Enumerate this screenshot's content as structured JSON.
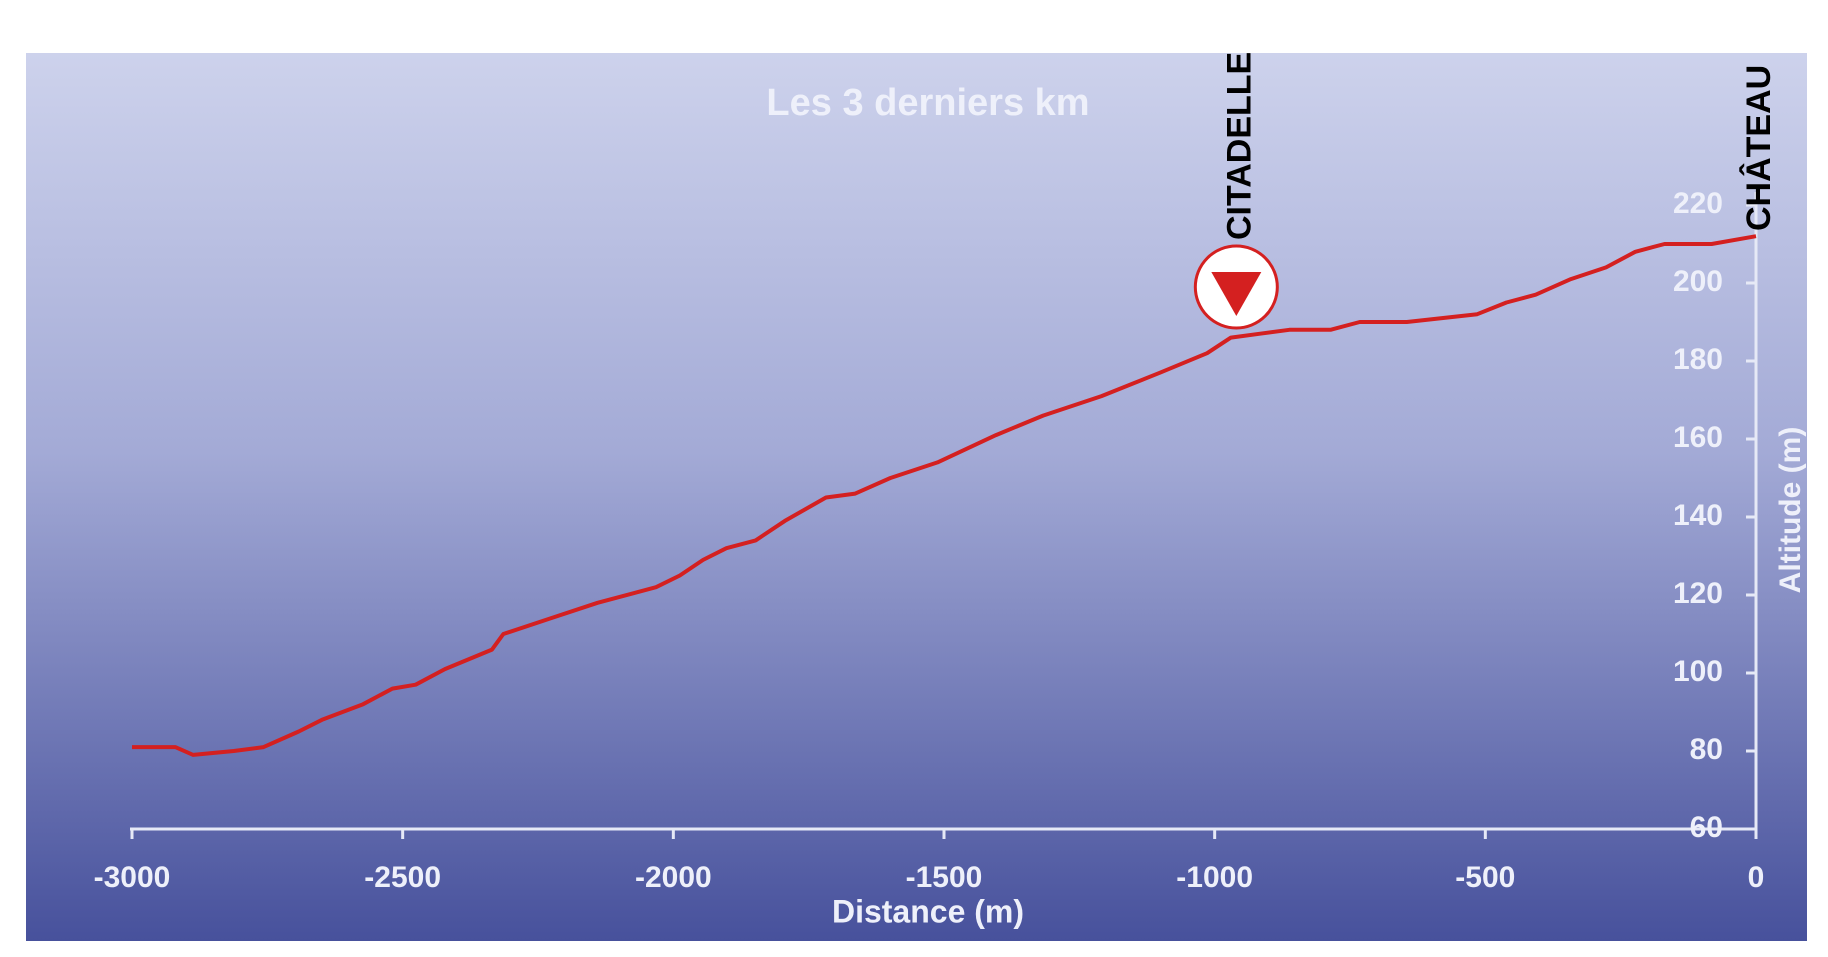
{
  "chart_data": {
    "type": "line",
    "title": "Les 3 derniers km",
    "x_label": "Distance (m)",
    "y_label": "Altitude (m)",
    "x": [
      -3000,
      -2920,
      -2887,
      -2812,
      -2757,
      -2692,
      -2649,
      -2573,
      -2519,
      -2476,
      -2422,
      -2335,
      -2314,
      -2227,
      -2140,
      -2032,
      -1988,
      -1945,
      -1902,
      -1848,
      -1794,
      -1718,
      -1664,
      -1599,
      -1512,
      -1404,
      -1317,
      -1209,
      -1101,
      -1014,
      -970,
      -916,
      -862,
      -786,
      -732,
      -645,
      -515,
      -461,
      -407,
      -342,
      -277,
      -223,
      -169,
      -82,
      0
    ],
    "values": [
      81,
      81,
      79,
      80,
      81,
      85,
      88,
      92,
      96,
      97,
      101,
      106,
      110,
      114,
      118,
      122,
      125,
      129,
      132,
      134,
      139,
      145,
      146,
      150,
      154,
      161,
      166,
      171,
      177,
      182,
      186,
      187,
      188,
      188,
      190,
      190,
      192,
      195,
      197,
      201,
      204,
      208,
      210,
      210,
      212
    ],
    "color": "#d42020",
    "xlim": [
      -3000,
      0
    ],
    "ylim": [
      60,
      220
    ],
    "xticks": [
      -3000,
      -2500,
      -2000,
      -1500,
      -1000,
      -500,
      0
    ],
    "yticks": [
      60,
      80,
      100,
      120,
      140,
      160,
      180,
      200,
      220
    ],
    "annotations": [
      {
        "text": "CITADELLE",
        "x": -960
      },
      {
        "text": "CHÂTEAU",
        "x": 0
      }
    ]
  }
}
